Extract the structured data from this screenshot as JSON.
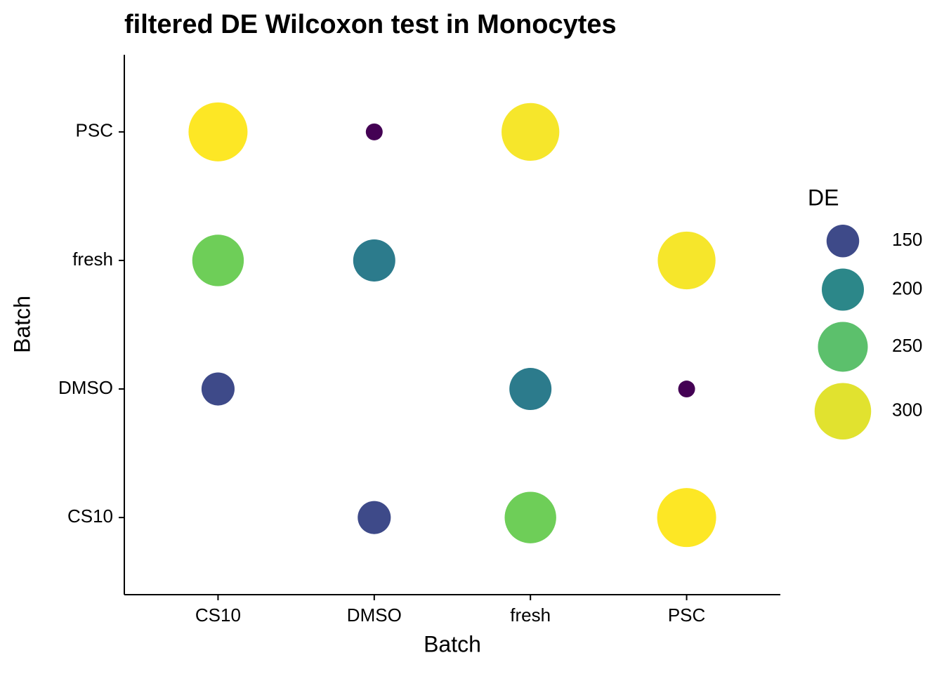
{
  "chart_data": {
    "type": "bubble",
    "title": "filtered DE Wilcoxon test in Monocytes",
    "x_label": "Batch",
    "y_label": "Batch",
    "categories": [
      "CS10",
      "DMSO",
      "fresh",
      "PSC"
    ],
    "y_categories": [
      "CS10",
      "DMSO",
      "fresh",
      "PSC"
    ],
    "series": [
      {
        "name": "DE",
        "x": [
          "CS10",
          "DMSO",
          "fresh",
          "CS10",
          "DMSO",
          "PSC",
          "CS10",
          "fresh",
          "PSC",
          "DMSO",
          "fresh",
          "PSC"
        ],
        "y": [
          "PSC",
          "PSC",
          "PSC",
          "fresh",
          "fresh",
          "fresh",
          "DMSO",
          "DMSO",
          "DMSO",
          "CS10",
          "CS10",
          "CS10"
        ],
        "values": [
          320,
          95,
          310,
          262,
          200,
          310,
          152,
          200,
          95,
          152,
          262,
          320
        ],
        "colors": [
          "#fde725",
          "#440154",
          "#f6e62b",
          "#6ece58",
          "#2c7b8c",
          "#f6e62b",
          "#3e4a89",
          "#2c7b8c",
          "#440154",
          "#3e4a89",
          "#6ece58",
          "#fde725"
        ]
      }
    ],
    "legend": {
      "title": "DE",
      "values": [
        150,
        200,
        250,
        300
      ],
      "colors": [
        "#3e4a89",
        "#2c8789",
        "#5cc06c",
        "#e1e22f"
      ]
    }
  }
}
